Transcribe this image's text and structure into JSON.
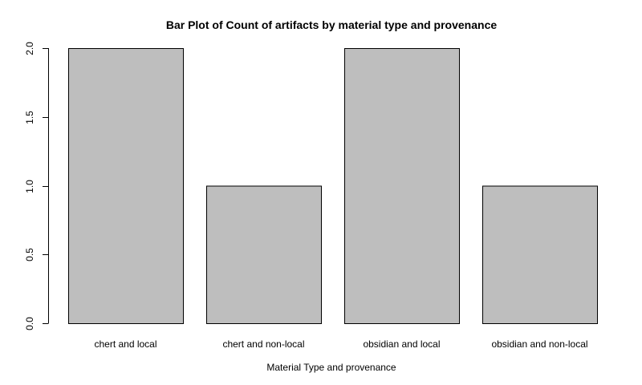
{
  "chart_data": {
    "type": "bar",
    "title": "Bar Plot of Count of artifacts by material type and provenance",
    "xlabel": "Material Type and provenance",
    "ylabel": "",
    "categories": [
      "chert and local",
      "chert and non-local",
      "obsidian and local",
      "obsidian and non-local"
    ],
    "values": [
      2,
      1,
      2,
      1
    ],
    "ylim": [
      0,
      2
    ],
    "yticks": [
      0.0,
      0.5,
      1.0,
      1.5,
      2.0
    ],
    "ytick_labels": [
      "0.0",
      "0.5",
      "1.0",
      "1.5",
      "2.0"
    ],
    "grid": false,
    "legend": "none",
    "colors": {
      "bar_fill": "#bebebe",
      "bar_stroke": "#000000",
      "axis": "#000000",
      "background": "#ffffff"
    }
  }
}
